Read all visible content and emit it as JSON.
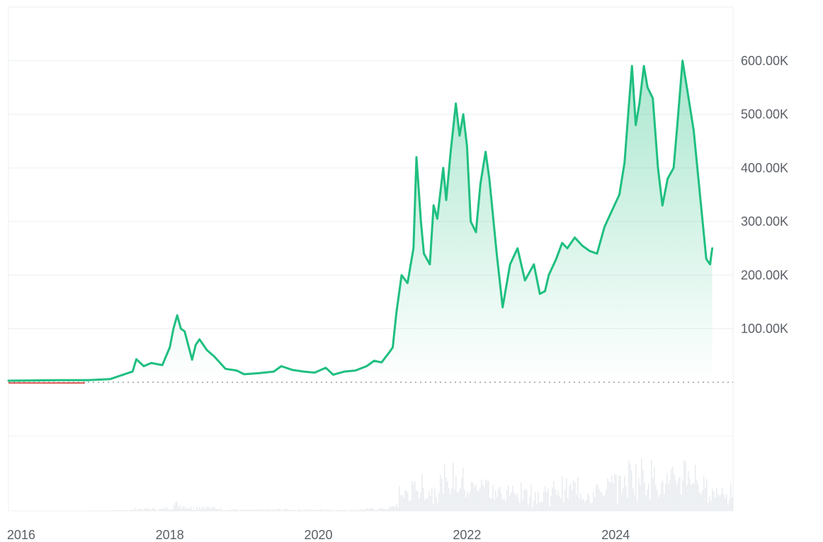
{
  "chart_data": {
    "type": "area",
    "title": "",
    "xlabel": "",
    "ylabel": "",
    "x_ticks": [
      "2016",
      "2018",
      "2020",
      "2022",
      "2024"
    ],
    "y_ticks": [
      "100.00K",
      "200.00K",
      "300.00K",
      "400.00K",
      "500.00K",
      "600.00K"
    ],
    "y_tick_values": [
      100000,
      200000,
      300000,
      400000,
      500000,
      600000
    ],
    "xlim": [
      2015.83,
      2025.58
    ],
    "ylim": [
      -100000,
      700000
    ],
    "baseline": 0,
    "grid": true,
    "colors": {
      "line": "#1fbf80",
      "area_top": "#1fbf80",
      "baseline_dots": "#9aa0a6",
      "grid": "#eceff2",
      "volume": "#e9ecef",
      "early_line": "#d9534f"
    },
    "series": [
      {
        "values": [
          [
            2015.83,
            3000
          ],
          [
            2016.2,
            3500
          ],
          [
            2016.5,
            4000
          ],
          [
            2016.9,
            4000
          ],
          [
            2017.2,
            6000
          ],
          [
            2017.5,
            20000
          ],
          [
            2017.55,
            43000
          ],
          [
            2017.65,
            30000
          ],
          [
            2017.75,
            36000
          ],
          [
            2017.9,
            32000
          ],
          [
            2018.0,
            65000
          ],
          [
            2018.05,
            100000
          ],
          [
            2018.1,
            125000
          ],
          [
            2018.15,
            100000
          ],
          [
            2018.2,
            95000
          ],
          [
            2018.3,
            42000
          ],
          [
            2018.35,
            70000
          ],
          [
            2018.4,
            80000
          ],
          [
            2018.5,
            60000
          ],
          [
            2018.6,
            48000
          ],
          [
            2018.75,
            25000
          ],
          [
            2018.9,
            22000
          ],
          [
            2019.0,
            15000
          ],
          [
            2019.2,
            17000
          ],
          [
            2019.4,
            20000
          ],
          [
            2019.5,
            30000
          ],
          [
            2019.65,
            23000
          ],
          [
            2019.8,
            20000
          ],
          [
            2019.95,
            18000
          ],
          [
            2020.1,
            27000
          ],
          [
            2020.2,
            14000
          ],
          [
            2020.35,
            20000
          ],
          [
            2020.5,
            22000
          ],
          [
            2020.65,
            30000
          ],
          [
            2020.75,
            40000
          ],
          [
            2020.85,
            37000
          ],
          [
            2020.95,
            55000
          ],
          [
            2021.0,
            65000
          ],
          [
            2021.05,
            130000
          ],
          [
            2021.12,
            200000
          ],
          [
            2021.2,
            185000
          ],
          [
            2021.28,
            250000
          ],
          [
            2021.32,
            420000
          ],
          [
            2021.38,
            300000
          ],
          [
            2021.42,
            240000
          ],
          [
            2021.5,
            220000
          ],
          [
            2021.55,
            330000
          ],
          [
            2021.6,
            305000
          ],
          [
            2021.68,
            400000
          ],
          [
            2021.72,
            340000
          ],
          [
            2021.78,
            430000
          ],
          [
            2021.85,
            520000
          ],
          [
            2021.9,
            460000
          ],
          [
            2021.95,
            500000
          ],
          [
            2022.0,
            440000
          ],
          [
            2022.05,
            300000
          ],
          [
            2022.12,
            280000
          ],
          [
            2022.18,
            370000
          ],
          [
            2022.25,
            430000
          ],
          [
            2022.3,
            380000
          ],
          [
            2022.4,
            240000
          ],
          [
            2022.48,
            140000
          ],
          [
            2022.58,
            220000
          ],
          [
            2022.68,
            250000
          ],
          [
            2022.78,
            190000
          ],
          [
            2022.9,
            220000
          ],
          [
            2022.98,
            165000
          ],
          [
            2023.05,
            170000
          ],
          [
            2023.1,
            200000
          ],
          [
            2023.2,
            230000
          ],
          [
            2023.28,
            260000
          ],
          [
            2023.35,
            250000
          ],
          [
            2023.45,
            270000
          ],
          [
            2023.55,
            255000
          ],
          [
            2023.65,
            245000
          ],
          [
            2023.75,
            240000
          ],
          [
            2023.85,
            290000
          ],
          [
            2023.95,
            320000
          ],
          [
            2024.05,
            350000
          ],
          [
            2024.12,
            410000
          ],
          [
            2024.18,
            520000
          ],
          [
            2024.22,
            590000
          ],
          [
            2024.27,
            480000
          ],
          [
            2024.32,
            520000
          ],
          [
            2024.38,
            590000
          ],
          [
            2024.43,
            550000
          ],
          [
            2024.5,
            530000
          ],
          [
            2024.57,
            400000
          ],
          [
            2024.63,
            330000
          ],
          [
            2024.7,
            380000
          ],
          [
            2024.78,
            400000
          ],
          [
            2024.83,
            480000
          ],
          [
            2024.9,
            600000
          ],
          [
            2024.97,
            540000
          ],
          [
            2025.05,
            470000
          ],
          [
            2025.1,
            400000
          ],
          [
            2025.17,
            300000
          ],
          [
            2025.22,
            230000
          ],
          [
            2025.27,
            220000
          ],
          [
            2025.3,
            250000
          ]
        ]
      }
    ]
  }
}
